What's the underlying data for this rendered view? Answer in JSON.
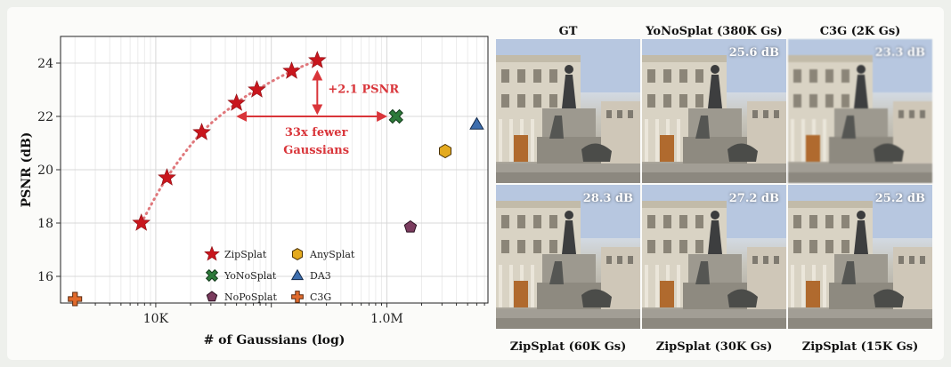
{
  "chart_data": {
    "type": "scatter",
    "xlabel": "# of Gaussians (log)",
    "ylabel": "PSNR (dB)",
    "xscale": "log",
    "xlim": [
      1500,
      7500000
    ],
    "ylim": [
      15,
      25
    ],
    "xticks": [
      {
        "value": 10000,
        "label": "10K"
      },
      {
        "value": 1000000,
        "label": "1.0M"
      }
    ],
    "yticks": [
      16,
      18,
      20,
      22,
      24
    ],
    "grid": true,
    "legend": "bottom-center",
    "series": [
      {
        "name": "ZipSplat",
        "marker": "star",
        "color": "#c8161d",
        "line": "dotted",
        "points": [
          [
            7500,
            18.0
          ],
          [
            12500,
            19.7
          ],
          [
            25000,
            21.4
          ],
          [
            50000,
            22.5
          ],
          [
            75000,
            23.0
          ],
          [
            150000,
            23.7
          ],
          [
            250000,
            24.1
          ]
        ]
      },
      {
        "name": "YoNoSplat",
        "marker": "x",
        "color": "#2d7a3a",
        "points": [
          [
            1200000,
            22.0
          ]
        ]
      },
      {
        "name": "NoPoSplat",
        "marker": "pentagon",
        "color": "#7a3b5e",
        "points": [
          [
            1600000,
            17.85
          ]
        ]
      },
      {
        "name": "AnySplat",
        "marker": "hexagon",
        "color": "#e4aa1e",
        "points": [
          [
            3200000,
            20.7
          ]
        ]
      },
      {
        "name": "DA3",
        "marker": "triangle",
        "color": "#3d6eae",
        "points": [
          [
            6000000,
            21.7
          ]
        ]
      },
      {
        "name": "C3G",
        "marker": "plus",
        "color": "#e06a2c",
        "points": [
          [
            2000,
            15.15
          ]
        ]
      }
    ],
    "annotations": [
      {
        "text": "+2.1 PSNR",
        "color": "#d9353a"
      },
      {
        "text_lines": [
          "33x fewer",
          "Gaussians"
        ],
        "color": "#d9353a"
      }
    ]
  },
  "panels": [
    {
      "label": "GT",
      "psnr": "",
      "position": "top"
    },
    {
      "label": "YoNoSplat (380K Gs)",
      "psnr": "25.6 dB",
      "position": "top"
    },
    {
      "label": "C3G (2K Gs)",
      "psnr": "23.3 dB",
      "position": "top"
    },
    {
      "label": "ZipSplat (60K Gs)",
      "psnr": "28.3 dB",
      "position": "bottom"
    },
    {
      "label": "ZipSplat (30K Gs)",
      "psnr": "27.2 dB",
      "position": "bottom"
    },
    {
      "label": "ZipSplat (15K Gs)",
      "psnr": "25.2 dB",
      "position": "bottom"
    }
  ]
}
